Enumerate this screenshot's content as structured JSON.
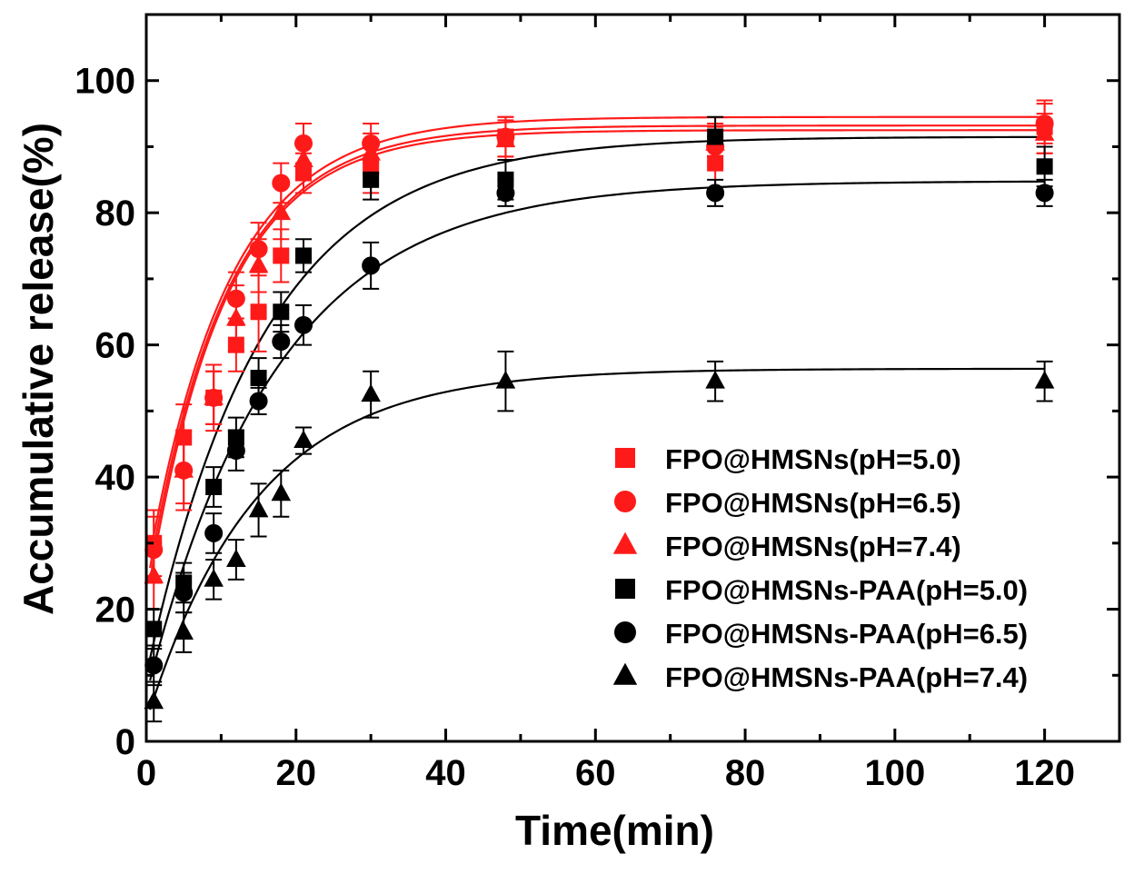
{
  "chart_data": {
    "type": "scatter",
    "title": "",
    "xlabel": "Time(min)",
    "ylabel": "Accumulative release(%)",
    "xlim": [
      0,
      130
    ],
    "ylim": [
      0,
      110
    ],
    "xticks": [
      0,
      20,
      40,
      60,
      80,
      100,
      120
    ],
    "yticks": [
      0,
      20,
      40,
      60,
      80,
      100
    ],
    "xtick_labels": [
      "0",
      "20",
      "40",
      "60",
      "80",
      "100",
      "120"
    ],
    "ytick_labels": [
      "0",
      "20",
      "40",
      "60",
      "80",
      "100"
    ],
    "grid": false,
    "legend_position": "bottom-right",
    "series": [
      {
        "name": "FPO@HMSNs(pH=5.0)",
        "color": "#ff1a1a",
        "marker": "square",
        "x": [
          1,
          5,
          9,
          12,
          15,
          18,
          21,
          30,
          48,
          76,
          120
        ],
        "y": [
          30,
          46,
          52,
          60,
          65,
          73.5,
          86,
          87,
          91.5,
          87.5,
          93
        ],
        "err": [
          5,
          5,
          5,
          4,
          6,
          4,
          3,
          4,
          3,
          4,
          4
        ],
        "fit": {
          "a": 94.5,
          "b": 0.093,
          "c": 25
        }
      },
      {
        "name": "FPO@HMSNs(pH=6.5)",
        "color": "#ff1a1a",
        "marker": "circle",
        "x": [
          1,
          5,
          9,
          12,
          15,
          18,
          21,
          30,
          48,
          76,
          120
        ],
        "y": [
          29,
          41,
          52,
          67,
          74.5,
          84.5,
          90.5,
          90.5,
          91.5,
          90,
          93.5
        ],
        "err": [
          5,
          5,
          4,
          4,
          4,
          3,
          3,
          3,
          3,
          3,
          3
        ],
        "fit": {
          "a": 93.2,
          "b": 0.095,
          "c": 23
        }
      },
      {
        "name": "FPO@HMSNs(pH=7.4)",
        "color": "#ff1a1a",
        "marker": "triangle",
        "x": [
          1,
          5,
          9,
          12,
          15,
          18,
          21,
          30,
          48,
          76,
          120
        ],
        "y": [
          25,
          41,
          52,
          64,
          72,
          80,
          88,
          89,
          91,
          90.5,
          92
        ],
        "err": [
          5,
          6,
          4,
          5,
          4,
          4,
          3,
          3,
          3,
          3,
          3
        ],
        "fit": {
          "a": 92.5,
          "b": 0.097,
          "c": 21
        }
      },
      {
        "name": "FPO@HMSNs-PAA(pH=5.0)",
        "color": "#000000",
        "marker": "square",
        "x": [
          1,
          5,
          9,
          12,
          15,
          18,
          21,
          30,
          48,
          76,
          120
        ],
        "y": [
          17,
          24,
          38.5,
          46,
          55,
          65,
          73.5,
          85,
          85,
          91.5,
          87
        ],
        "err": [
          3,
          3,
          3,
          3,
          3,
          3,
          2.5,
          3,
          3,
          3,
          3
        ],
        "fit": {
          "a": 91.5,
          "b": 0.064,
          "c": 10
        }
      },
      {
        "name": "FPO@HMSNs-PAA(pH=6.5)",
        "color": "#000000",
        "marker": "circle",
        "x": [
          1,
          5,
          9,
          12,
          15,
          18,
          21,
          30,
          48,
          76,
          120
        ],
        "y": [
          11.5,
          22.5,
          31.5,
          44,
          51.5,
          60.5,
          63,
          72,
          83,
          83,
          83
        ],
        "err": [
          3,
          3,
          3,
          3,
          2,
          2.5,
          3,
          3.5,
          2,
          2,
          2
        ],
        "fit": {
          "a": 84.8,
          "b": 0.058,
          "c": 7
        }
      },
      {
        "name": "FPO@HMSNs-PAA(pH=7.4)",
        "color": "#000000",
        "marker": "triangle",
        "x": [
          1,
          5,
          9,
          12,
          15,
          18,
          21,
          30,
          48,
          76,
          120
        ],
        "y": [
          6,
          16.5,
          24.5,
          27.5,
          35,
          37.5,
          45.5,
          52.5,
          54.5,
          54.5,
          54.5
        ],
        "err": [
          3,
          3,
          3,
          3,
          4,
          3.5,
          2,
          3.5,
          4.5,
          3,
          3
        ],
        "fit": {
          "a": 56.4,
          "b": 0.068,
          "c": 3
        }
      }
    ]
  }
}
